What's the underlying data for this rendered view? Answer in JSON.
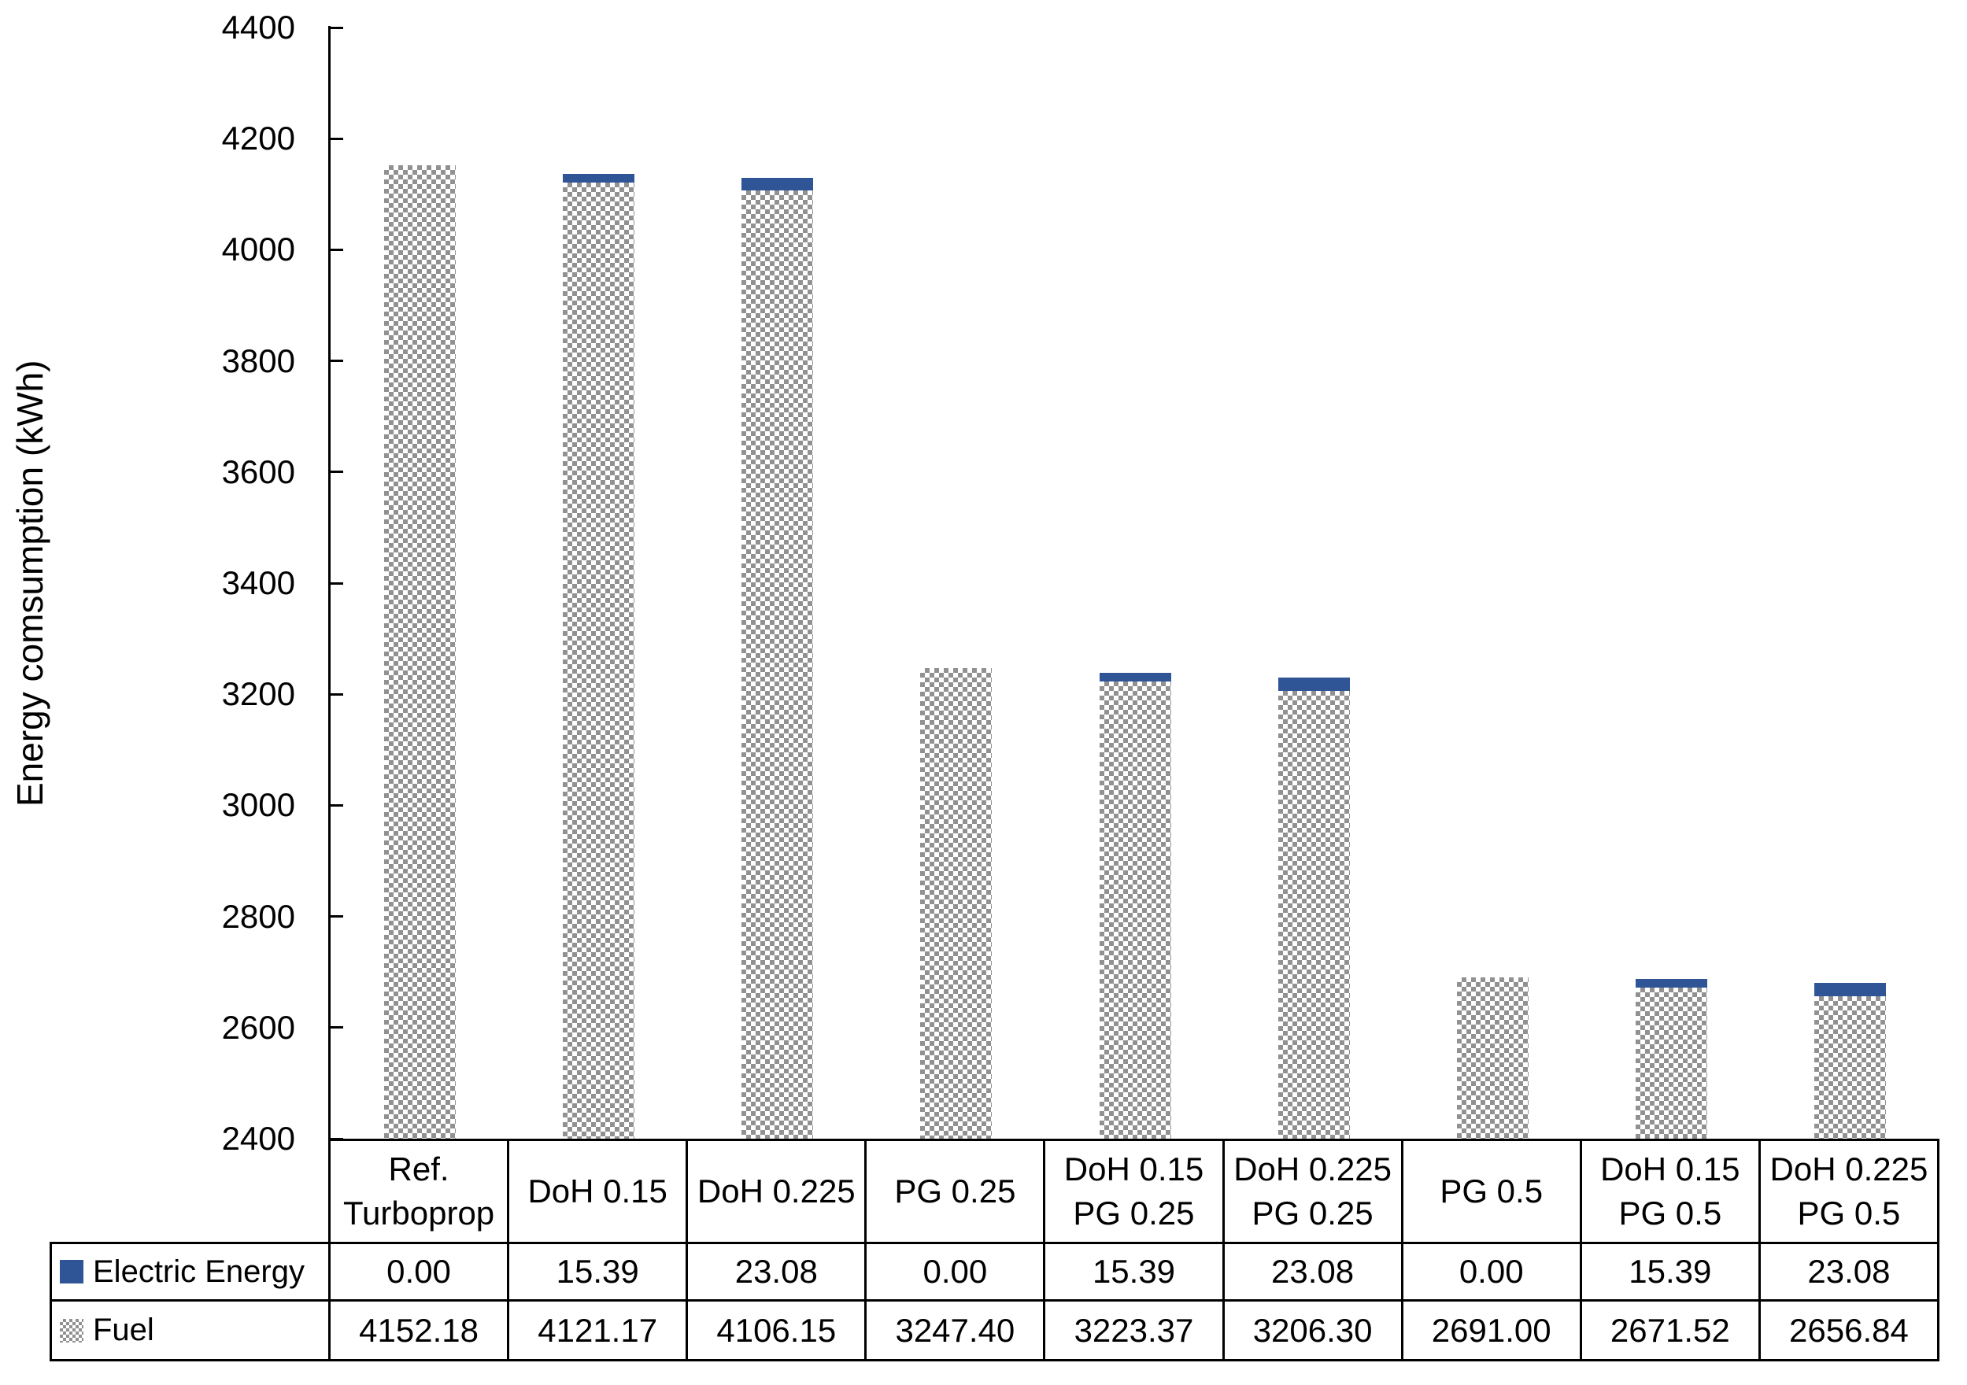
{
  "page": {
    "background": "#ffffff"
  },
  "colors": {
    "electric_blue": "#2F5597",
    "hatch_gray": "#919191",
    "axis_black": "#000000",
    "table_border": "#000000"
  },
  "chart_data": {
    "type": "bar",
    "stacked": true,
    "orientation": "vertical",
    "title": "",
    "xlabel": "",
    "ylabel": "Energy comsumption (kWh)",
    "ylim": [
      2400,
      4400
    ],
    "ytick_interval": 200,
    "yticks": [
      4400,
      4200,
      4000,
      3800,
      3600,
      3400,
      3200,
      3000,
      2800,
      2600,
      2400
    ],
    "grid": false,
    "legend_position": "table-left",
    "value_decimals": 2,
    "categories": [
      "Ref.\nTurboprop",
      "DoH 0.15",
      "DoH 0.225",
      "PG 0.25",
      "DoH 0.15\nPG 0.25",
      "DoH 0.225\nPG 0.25",
      "PG 0.5",
      "DoH 0.15\nPG 0.5",
      "DoH 0.225\nPG 0.5"
    ],
    "series": [
      {
        "name": "Electric Energy",
        "stack_position": "top",
        "color": "#2F5597",
        "marker": "solid-blue-square",
        "values": [
          0.0,
          15.39,
          23.08,
          0.0,
          15.39,
          23.08,
          0.0,
          15.39,
          23.08
        ]
      },
      {
        "name": "Fuel",
        "stack_position": "base",
        "color": "#919191",
        "marker": "checker-hatch-square",
        "pattern": "checkerboard",
        "values": [
          4152.18,
          4121.17,
          4106.15,
          3247.4,
          3223.37,
          3206.3,
          2691.0,
          2671.52,
          2656.84
        ]
      }
    ]
  }
}
